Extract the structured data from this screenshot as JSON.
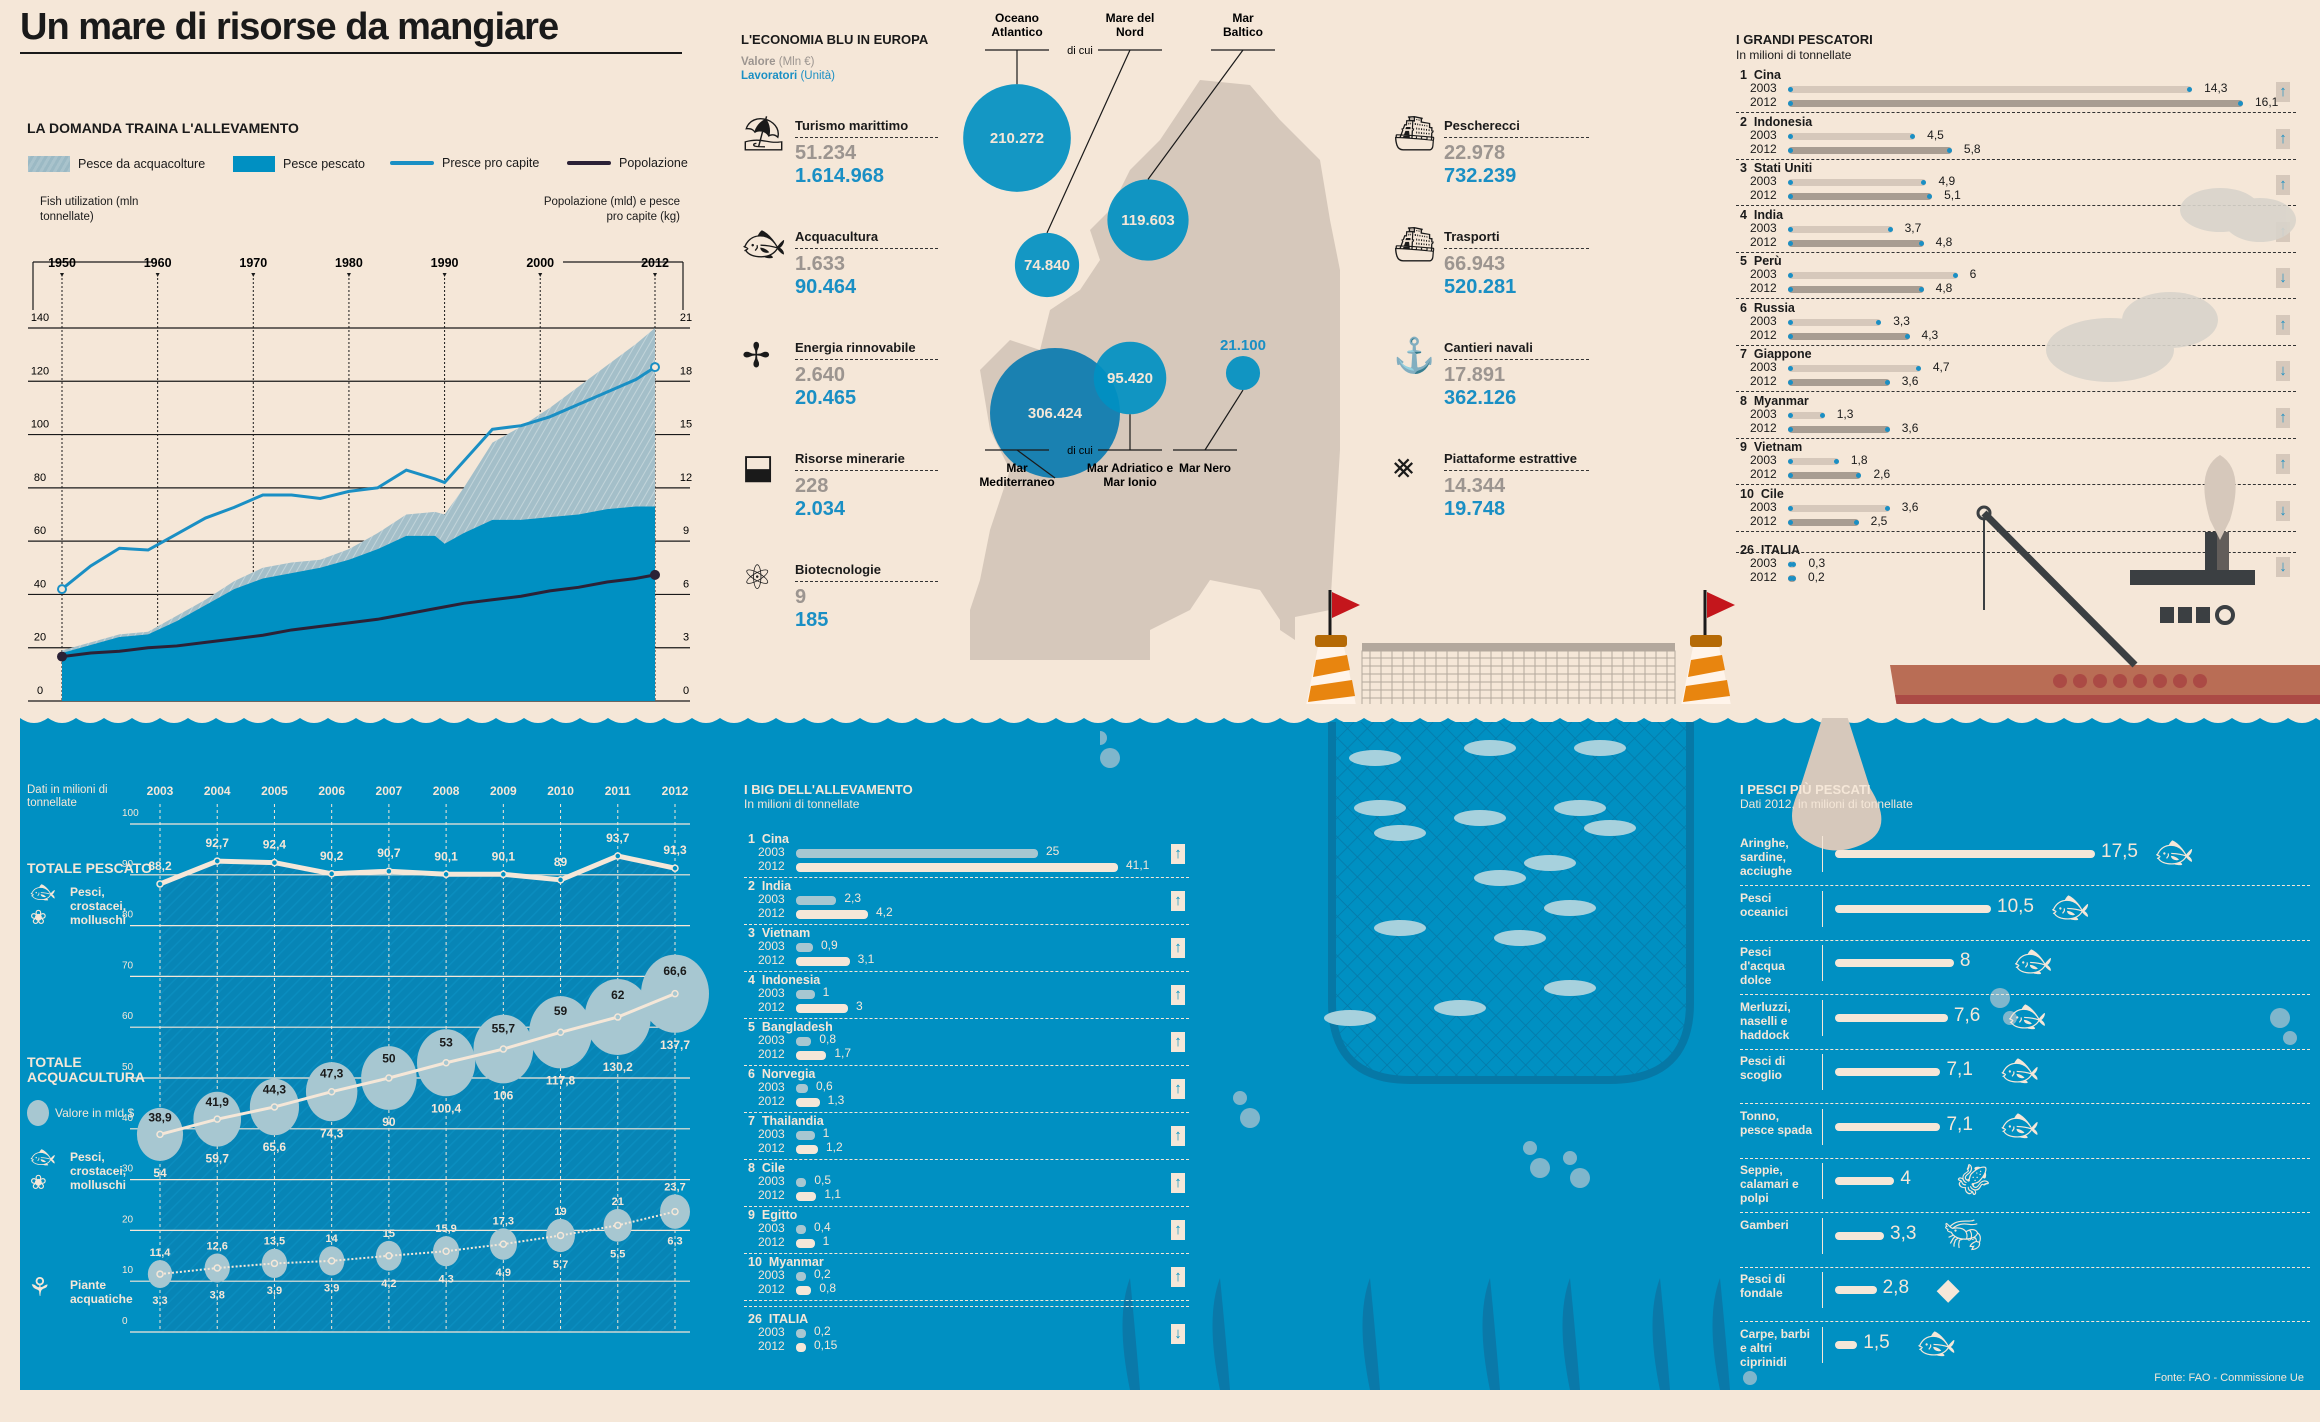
{
  "header": {
    "title": "Un mare di risorse da mangiare"
  },
  "colors": {
    "background": "#f5e7d8",
    "sea": "#0090c2",
    "accent_blue": "#1a8fc4",
    "dark": "#2b2136",
    "map_land": "#d6c8bb",
    "ship_hull": "#b96d55",
    "flag_red": "#c4161c",
    "buoy_orange": "#e8850f"
  },
  "chart_data": [
    {
      "id": "domanda",
      "type": "area",
      "title": "LA DOMANDA TRAINA L'ALLEVAMENTO",
      "legend": [
        "Pesce da acquacolture",
        "Pesce pescato",
        "Presce pro capite",
        "Popolazione"
      ],
      "ylabel_left": "Fish utilization (mln tonnellate)",
      "ylabel_right": "Popolazione (mld) e pesce pro capite (kg)",
      "x_ticks": [
        "1950",
        "1960",
        "1970",
        "1980",
        "1990",
        "2000",
        "2012"
      ],
      "xlim": [
        1950,
        2012
      ],
      "ylim_left": [
        0,
        140
      ],
      "y_ticks_left": [
        0,
        20,
        40,
        60,
        80,
        100,
        120,
        140
      ],
      "ylim_right": [
        0,
        21
      ],
      "y_ticks_right": [
        0,
        3,
        6,
        9,
        12,
        15,
        18,
        21
      ],
      "x": [
        1950,
        1953,
        1956,
        1959,
        1962,
        1965,
        1968,
        1971,
        1974,
        1977,
        1980,
        1983,
        1986,
        1989,
        1990,
        1992,
        1995,
        1998,
        2001,
        2004,
        2007,
        2010,
        2012
      ],
      "series": [
        {
          "name": "Pesce pescato",
          "axis": "left",
          "values": [
            18,
            21,
            24,
            25,
            30,
            36,
            42,
            46,
            48,
            50,
            53,
            57,
            62,
            62,
            59,
            63,
            68,
            68,
            69,
            70,
            72,
            73,
            73
          ]
        },
        {
          "name": "Pesce da acquacolture (totale)",
          "axis": "left",
          "values": [
            19,
            22,
            25,
            26,
            32,
            38,
            45,
            50,
            52,
            53,
            57,
            63,
            70,
            71,
            70,
            80,
            97,
            103,
            110,
            118,
            126,
            134,
            140
          ]
        },
        {
          "name": "Presce pro capite",
          "axis": "right",
          "values": [
            6.3,
            7.6,
            8.6,
            8.5,
            9.4,
            10.3,
            10.9,
            11.6,
            11.6,
            11.4,
            11.8,
            12.0,
            13.0,
            12.5,
            12.3,
            13.5,
            15.3,
            15.5,
            16.0,
            16.7,
            17.4,
            18.1,
            18.8
          ]
        },
        {
          "name": "Popolazione",
          "axis": "right",
          "values": [
            2.5,
            2.7,
            2.8,
            3.0,
            3.1,
            3.3,
            3.5,
            3.7,
            4.0,
            4.2,
            4.4,
            4.6,
            4.9,
            5.2,
            5.3,
            5.5,
            5.7,
            5.9,
            6.2,
            6.4,
            6.7,
            6.9,
            7.1
          ]
        }
      ]
    },
    {
      "id": "totali",
      "type": "line",
      "note": "Dati in milioni di tonnellate",
      "categories": [
        "2003",
        "2004",
        "2005",
        "2006",
        "2007",
        "2008",
        "2009",
        "2010",
        "2011",
        "2012"
      ],
      "ylim": [
        0,
        100
      ],
      "y_ticks": [
        0,
        10,
        20,
        30,
        40,
        50,
        60,
        70,
        80,
        90,
        100
      ],
      "series": [
        {
          "name": "TOTALE PESCATO",
          "sublabel": "Pesci, crostacei, molluschi",
          "values": [
            88.2,
            92.7,
            92.4,
            90.2,
            90.7,
            90.1,
            90.1,
            89,
            93.7,
            91.3
          ],
          "labels": [
            "88,2",
            "92,7",
            "92,4",
            "90,2",
            "90,7",
            "90,1",
            "90,1",
            "89",
            "93,7",
            "91,3"
          ]
        },
        {
          "name": "TOTALE ACQUACULTURA",
          "sublabel": "Pesci, crostacei, molluschi",
          "values": [
            38.9,
            41.9,
            44.3,
            47.3,
            50,
            53,
            55.7,
            59,
            62,
            66.6
          ],
          "labels": [
            "38,9",
            "41,9",
            "44,3",
            "47,3",
            "50",
            "53",
            "55,7",
            "59",
            "62",
            "66,6"
          ],
          "value_usd_bn": [
            54,
            59.7,
            65.6,
            74.3,
            90,
            100.4,
            106,
            117.8,
            130.2,
            137.7
          ],
          "value_labels": [
            "54",
            "59,7",
            "65,6",
            "74,3",
            "90",
            "100,4",
            "106",
            "117,8",
            "130,2",
            "137,7"
          ]
        },
        {
          "name": "Piante acquatiche",
          "values": [
            11.4,
            12.6,
            13.5,
            14,
            15,
            15.9,
            17.3,
            19,
            21,
            23.7
          ],
          "labels": [
            "11,4",
            "12,6",
            "13,5",
            "14",
            "15",
            "15,9",
            "17,3",
            "19",
            "21",
            "23,7"
          ],
          "value_usd_bn": [
            3.3,
            3.8,
            3.9,
            3.9,
            4.2,
            4.3,
            4.9,
            5.7,
            5.5,
            6.3
          ],
          "value_labels": [
            "3,3",
            "3,8",
            "3,9",
            "3,9",
            "4,2",
            "4,3",
            "4,9",
            "5,7",
            "5,5",
            "6,3"
          ]
        }
      ],
      "legend_bubble": "Valore in mld $"
    }
  ],
  "economia": {
    "title": "L'ECONOMIA BLU IN EUROPA",
    "legend_value": "Valore",
    "legend_value_unit": "(Mln €)",
    "legend_workers": "Lavoratori",
    "legend_workers_unit": "(Unità)",
    "sectors_left": [
      {
        "icon": "beach-umbrella-icon",
        "name": "Turismo marittimo",
        "value": "51.234",
        "workers": "1.614.968"
      },
      {
        "icon": "fish-icon",
        "name": "Acquacultura",
        "value": "1.633",
        "workers": "90.464"
      },
      {
        "icon": "wind-turbine-icon",
        "name": "Energia rinnovabile",
        "value": "2.640",
        "workers": "20.465"
      },
      {
        "icon": "mine-cart-icon",
        "name": "Risorse minerarie",
        "value": "228",
        "workers": "2.034"
      },
      {
        "icon": "atom-icon",
        "name": "Biotecnologie",
        "value": "9",
        "workers": "185"
      }
    ],
    "sectors_right": [
      {
        "icon": "fishing-boat-icon",
        "name": "Pescherecci",
        "value": "22.978",
        "workers": "732.239"
      },
      {
        "icon": "cargo-ship-icon",
        "name": "Trasporti",
        "value": "66.943",
        "workers": "520.281"
      },
      {
        "icon": "crane-hook-icon",
        "name": "Cantieri navali",
        "value": "17.891",
        "workers": "362.126"
      },
      {
        "icon": "oil-rig-icon",
        "name": "Piattaforme estrattive",
        "value": "14.344",
        "workers": "19.748"
      }
    ],
    "seas": [
      {
        "name": "Oceano Atlantico",
        "value": "210.272",
        "num": 210272
      },
      {
        "name": "Mare del Nord",
        "value": "74.840",
        "num": 74840
      },
      {
        "name": "Mar Baltico",
        "value": "119.603",
        "num": 119603
      },
      {
        "name": "Mar Mediterraneo",
        "value": "306.424",
        "num": 306424
      },
      {
        "name": "Mar Adriatico e Mar Ionio",
        "value": "95.420",
        "num": 95420
      },
      {
        "name": "Mar Nero",
        "value": "21.100",
        "num": 21100
      }
    ],
    "di_cui": "di cui"
  },
  "grandi_pescatori": {
    "title": "I GRANDI PESCATORI",
    "subtitle": "In milioni di tonnellate",
    "rows": [
      {
        "rank": "1",
        "country": "Cina",
        "v2003": 14.3,
        "l2003": "14,3",
        "v2012": 16.1,
        "l2012": "16,1",
        "trend": "up"
      },
      {
        "rank": "2",
        "country": "Indonesia",
        "v2003": 4.5,
        "l2003": "4,5",
        "v2012": 5.8,
        "l2012": "5,8",
        "trend": "up"
      },
      {
        "rank": "3",
        "country": "Stati Uniti",
        "v2003": 4.9,
        "l2003": "4,9",
        "v2012": 5.1,
        "l2012": "5,1",
        "trend": "up"
      },
      {
        "rank": "4",
        "country": "India",
        "v2003": 3.7,
        "l2003": "3,7",
        "v2012": 4.8,
        "l2012": "4,8",
        "trend": "up"
      },
      {
        "rank": "5",
        "country": "Perù",
        "v2003": 6,
        "l2003": "6",
        "v2012": 4.8,
        "l2012": "4,8",
        "trend": "down"
      },
      {
        "rank": "6",
        "country": "Russia",
        "v2003": 3.3,
        "l2003": "3,3",
        "v2012": 4.3,
        "l2012": "4,3",
        "trend": "up"
      },
      {
        "rank": "7",
        "country": "Giappone",
        "v2003": 4.7,
        "l2003": "4,7",
        "v2012": 3.6,
        "l2012": "3,6",
        "trend": "down"
      },
      {
        "rank": "8",
        "country": "Myanmar",
        "v2003": 1.3,
        "l2003": "1,3",
        "v2012": 3.6,
        "l2012": "3,6",
        "trend": "up"
      },
      {
        "rank": "9",
        "country": "Vietnam",
        "v2003": 1.8,
        "l2003": "1,8",
        "v2012": 2.6,
        "l2012": "2,6",
        "trend": "up"
      },
      {
        "rank": "10",
        "country": "Cile",
        "v2003": 3.6,
        "l2003": "3,6",
        "v2012": 2.5,
        "l2012": "2,5",
        "trend": "down"
      },
      {
        "rank": "26",
        "country": "ITALIA",
        "v2003": 0.3,
        "l2003": "0,3",
        "v2012": 0.2,
        "l2012": "0,2",
        "trend": "down"
      }
    ],
    "year_a": "2003",
    "year_b": "2012"
  },
  "big_allevamento": {
    "title": "I BIG DELL'ALLEVAMENTO",
    "subtitle": "In milioni di tonnellate",
    "rows": [
      {
        "rank": "1",
        "country": "Cina",
        "v2003": 25,
        "l2003": "25",
        "v2012": 41.1,
        "l2012": "41,1",
        "trend": "up",
        "broken": true
      },
      {
        "rank": "2",
        "country": "India",
        "v2003": 2.3,
        "l2003": "2,3",
        "v2012": 4.2,
        "l2012": "4,2",
        "trend": "up"
      },
      {
        "rank": "3",
        "country": "Vietnam",
        "v2003": 0.9,
        "l2003": "0,9",
        "v2012": 3.1,
        "l2012": "3,1",
        "trend": "up"
      },
      {
        "rank": "4",
        "country": "Indonesia",
        "v2003": 1,
        "l2003": "1",
        "v2012": 3,
        "l2012": "3",
        "trend": "up"
      },
      {
        "rank": "5",
        "country": "Bangladesh",
        "v2003": 0.8,
        "l2003": "0,8",
        "v2012": 1.7,
        "l2012": "1,7",
        "trend": "up"
      },
      {
        "rank": "6",
        "country": "Norvegia",
        "v2003": 0.6,
        "l2003": "0,6",
        "v2012": 1.3,
        "l2012": "1,3",
        "trend": "up"
      },
      {
        "rank": "7",
        "country": "Thailandia",
        "v2003": 1,
        "l2003": "1",
        "v2012": 1.2,
        "l2012": "1,2",
        "trend": "up"
      },
      {
        "rank": "8",
        "country": "Cile",
        "v2003": 0.5,
        "l2003": "0,5",
        "v2012": 1.1,
        "l2012": "1,1",
        "trend": "up"
      },
      {
        "rank": "9",
        "country": "Egitto",
        "v2003": 0.4,
        "l2003": "0,4",
        "v2012": 1,
        "l2012": "1",
        "trend": "up"
      },
      {
        "rank": "10",
        "country": "Myanmar",
        "v2003": 0.2,
        "l2003": "0,2",
        "v2012": 0.8,
        "l2012": "0,8",
        "trend": "up"
      },
      {
        "rank": "26",
        "country": "ITALIA",
        "v2003": 0.2,
        "l2003": "0,2",
        "v2012": 0.15,
        "l2012": "0,15",
        "trend": "down"
      }
    ],
    "year_a": "2003",
    "year_b": "2012"
  },
  "pesci_pescati": {
    "title": "I PESCI PIÙ PESCATI",
    "subtitle": "Dati 2012, in milioni di tonnellate",
    "rows": [
      {
        "label": "Aringhe, sardine, acciughe",
        "value": 17.5,
        "display": "17,5",
        "icon": "sardine-icon"
      },
      {
        "label": "Pesci oceanici",
        "value": 10.5,
        "display": "10,5",
        "icon": "swordfish-icon"
      },
      {
        "label": "Pesci d'acqua dolce",
        "value": 8,
        "display": "8",
        "icon": "trout-icon"
      },
      {
        "label": "Merluzzi, naselli e haddock",
        "value": 7.6,
        "display": "7,6",
        "icon": "cod-icon"
      },
      {
        "label": "Pesci di scoglio",
        "value": 7.1,
        "display": "7,1",
        "icon": "bream-icon"
      },
      {
        "label": "Tonno, pesce spada",
        "value": 7.1,
        "display": "7,1",
        "icon": "tuna-icon"
      },
      {
        "label": "Seppie, calamari e polpi",
        "value": 4,
        "display": "4",
        "icon": "squid-icon"
      },
      {
        "label": "Gamberi",
        "value": 3.3,
        "display": "3,3",
        "icon": "shrimp-icon"
      },
      {
        "label": "Pesci di fondale",
        "value": 2.8,
        "display": "2,8",
        "icon": "ray-icon"
      },
      {
        "label": "Carpe, barbi e altri ciprinidi",
        "value": 1.5,
        "display": "1,5",
        "icon": "carp-icon"
      }
    ]
  },
  "footer": {
    "source": "Fonte: FAO - Commissione Ue"
  }
}
